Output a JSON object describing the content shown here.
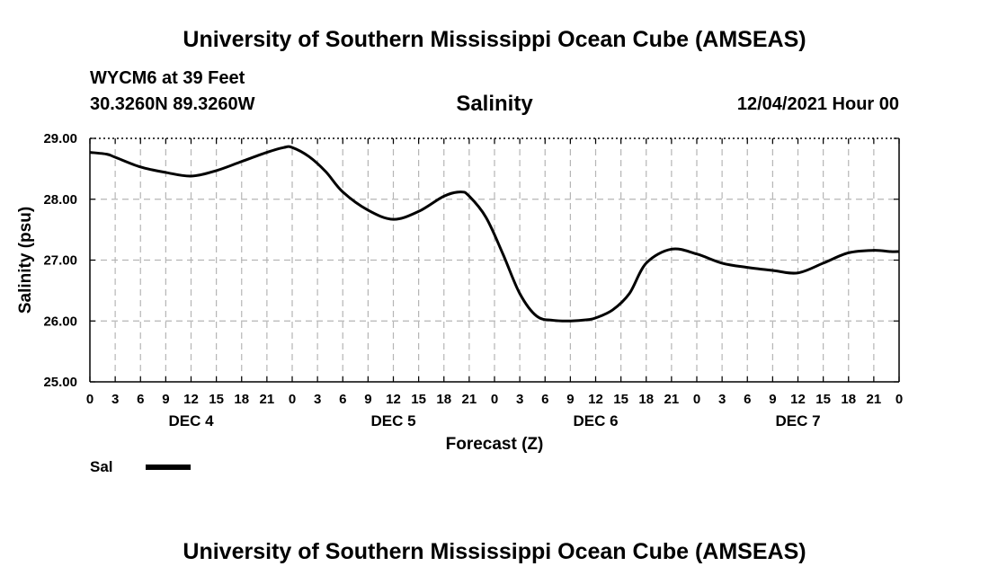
{
  "header": {
    "title": "University of Southern Mississippi Ocean Cube (AMSEAS)",
    "station": "WYCM6 at 39 Feet",
    "coords": "30.3260N  89.3260W",
    "variable": "Salinity",
    "date": "12/04/2021 Hour 00"
  },
  "footer": {
    "title": "University of Southern Mississippi Ocean Cube (AMSEAS)"
  },
  "chart_data": {
    "type": "line",
    "title": "Salinity",
    "xlabel": "Forecast (Z)",
    "ylabel": "Salinity (psu)",
    "ylim": [
      25.0,
      29.0
    ],
    "yticks": [
      "25.00",
      "26.00",
      "27.00",
      "28.00",
      "29.00"
    ],
    "xlim": [
      0,
      96
    ],
    "xtick_labels": [
      "0",
      "3",
      "6",
      "9",
      "12",
      "15",
      "18",
      "21",
      "0",
      "3",
      "6",
      "9",
      "12",
      "15",
      "18",
      "21",
      "0",
      "3",
      "6",
      "9",
      "12",
      "15",
      "18",
      "21",
      "0",
      "3",
      "6",
      "9",
      "12",
      "15",
      "18",
      "21",
      "0"
    ],
    "day_labels": [
      {
        "hour": 12,
        "label": "DEC 4"
      },
      {
        "hour": 36,
        "label": "DEC 5"
      },
      {
        "hour": 60,
        "label": "DEC 6"
      },
      {
        "hour": 84,
        "label": "DEC 7"
      }
    ],
    "grid": true,
    "legend": [
      {
        "name": "Sal",
        "color": "#000000"
      }
    ],
    "series": [
      {
        "name": "Sal",
        "color": "#000000",
        "x": [
          0,
          2,
          3,
          6,
          9,
          12,
          15,
          18,
          21,
          23,
          24,
          26,
          28,
          30,
          33,
          36,
          39,
          42,
          44,
          45,
          47,
          49,
          51,
          53,
          55,
          57,
          59,
          60,
          62,
          64,
          66,
          69,
          72,
          75,
          78,
          81,
          84,
          87,
          90,
          93,
          95,
          96
        ],
        "values": [
          28.77,
          28.74,
          28.69,
          28.53,
          28.44,
          28.38,
          28.47,
          28.62,
          28.77,
          28.85,
          28.85,
          28.7,
          28.45,
          28.12,
          27.82,
          27.67,
          27.8,
          28.05,
          28.12,
          28.05,
          27.7,
          27.1,
          26.45,
          26.08,
          26.01,
          26.0,
          26.02,
          26.05,
          26.18,
          26.45,
          26.95,
          27.18,
          27.1,
          26.95,
          26.88,
          26.83,
          26.79,
          26.95,
          27.12,
          27.16,
          27.14,
          27.14
        ]
      }
    ]
  }
}
